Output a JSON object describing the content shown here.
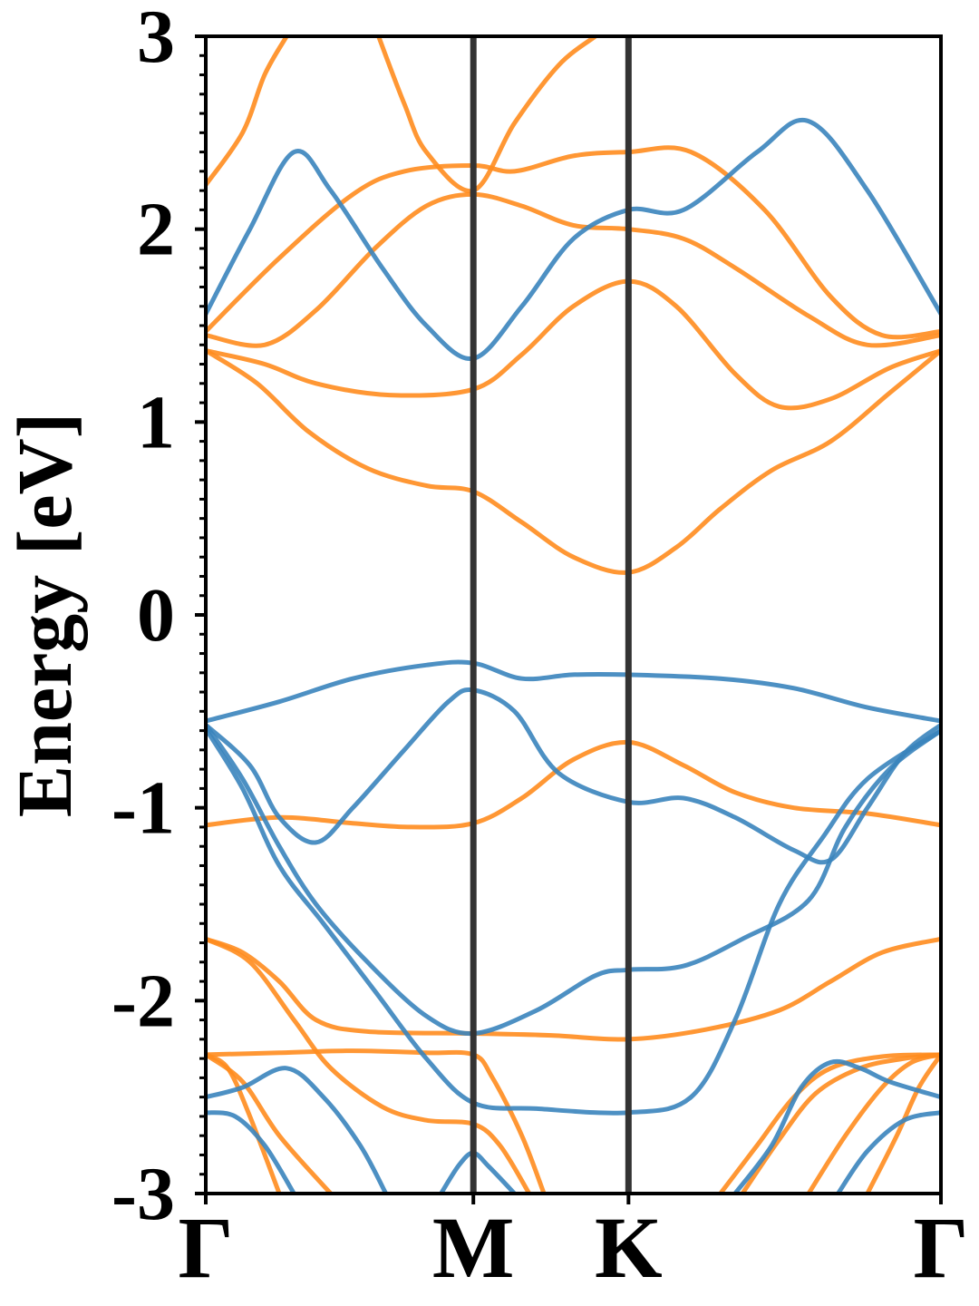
{
  "chart_data": {
    "type": "line",
    "title": "",
    "xlabel": "",
    "ylabel": "Energy [eV]",
    "ylim": [
      -3,
      3
    ],
    "xlim": [
      0,
      1
    ],
    "yticks": [
      -3,
      -2,
      -1,
      0,
      1,
      2,
      3
    ],
    "ytick_labels": [
      "-3",
      "-2",
      "-1",
      "0",
      "1",
      "2",
      "3"
    ],
    "kpoints": [
      {
        "label": "Γ",
        "x": 0.0
      },
      {
        "label": "M",
        "x": 0.364
      },
      {
        "label": "K",
        "x": 0.575
      },
      {
        "label": "Γ",
        "x": 1.0
      }
    ],
    "grid": false,
    "legend": "none",
    "colors": {
      "blue": "#3a84bd",
      "orange": "#ff8c1e",
      "symmetry_line": "#333333"
    },
    "series": [
      {
        "color": "blue",
        "points": [
          [
            0,
            1.56
          ],
          [
            0.06,
            2.0
          ],
          [
            0.12,
            2.4
          ],
          [
            0.17,
            2.2
          ],
          [
            0.24,
            1.8
          ],
          [
            0.3,
            1.5
          ],
          [
            0.364,
            1.33
          ],
          [
            0.43,
            1.6
          ],
          [
            0.5,
            1.95
          ],
          [
            0.575,
            2.1
          ],
          [
            0.65,
            2.1
          ],
          [
            0.75,
            2.4
          ],
          [
            0.82,
            2.56
          ],
          [
            0.9,
            2.2
          ],
          [
            1.0,
            1.56
          ]
        ]
      },
      {
        "color": "blue",
        "points": [
          [
            0,
            -0.55
          ],
          [
            0.1,
            -0.45
          ],
          [
            0.2,
            -0.33
          ],
          [
            0.3,
            -0.26
          ],
          [
            0.364,
            -0.25
          ],
          [
            0.43,
            -0.33
          ],
          [
            0.5,
            -0.31
          ],
          [
            0.575,
            -0.31
          ],
          [
            0.7,
            -0.33
          ],
          [
            0.8,
            -0.38
          ],
          [
            0.9,
            -0.48
          ],
          [
            1.0,
            -0.55
          ]
        ]
      },
      {
        "color": "blue",
        "points": [
          [
            0,
            -0.57
          ],
          [
            0.06,
            -0.78
          ],
          [
            0.1,
            -1.05
          ],
          [
            0.15,
            -1.18
          ],
          [
            0.2,
            -1.0
          ],
          [
            0.27,
            -0.7
          ],
          [
            0.33,
            -0.45
          ],
          [
            0.364,
            -0.39
          ],
          [
            0.42,
            -0.5
          ],
          [
            0.48,
            -0.82
          ],
          [
            0.575,
            -0.97
          ],
          [
            0.65,
            -0.95
          ],
          [
            0.72,
            -1.05
          ],
          [
            0.8,
            -1.22
          ],
          [
            0.85,
            -1.27
          ],
          [
            0.9,
            -1.0
          ],
          [
            0.95,
            -0.72
          ],
          [
            1.0,
            -0.57
          ]
        ]
      },
      {
        "color": "blue",
        "points": [
          [
            0,
            -0.57
          ],
          [
            0.05,
            -0.85
          ],
          [
            0.1,
            -1.2
          ],
          [
            0.15,
            -1.5
          ],
          [
            0.22,
            -1.8
          ],
          [
            0.3,
            -2.08
          ],
          [
            0.364,
            -2.17
          ],
          [
            0.45,
            -2.05
          ],
          [
            0.53,
            -1.87
          ],
          [
            0.575,
            -1.84
          ],
          [
            0.65,
            -1.82
          ],
          [
            0.73,
            -1.68
          ],
          [
            0.82,
            -1.48
          ],
          [
            0.87,
            -1.1
          ],
          [
            0.93,
            -0.8
          ],
          [
            1.0,
            -0.6
          ]
        ]
      },
      {
        "color": "blue",
        "points": [
          [
            0,
            -0.59
          ],
          [
            0.05,
            -0.9
          ],
          [
            0.1,
            -1.3
          ],
          [
            0.16,
            -1.6
          ],
          [
            0.23,
            -1.95
          ],
          [
            0.3,
            -2.3
          ],
          [
            0.364,
            -2.53
          ],
          [
            0.45,
            -2.56
          ],
          [
            0.575,
            -2.58
          ],
          [
            0.66,
            -2.5
          ],
          [
            0.72,
            -2.1
          ],
          [
            0.78,
            -1.5
          ],
          [
            0.84,
            -1.15
          ],
          [
            0.9,
            -0.85
          ],
          [
            1.0,
            -0.6
          ]
        ]
      },
      {
        "color": "blue",
        "points": [
          [
            0,
            -2.5
          ],
          [
            0.05,
            -2.45
          ],
          [
            0.11,
            -2.35
          ],
          [
            0.16,
            -2.5
          ],
          [
            0.21,
            -2.75
          ],
          [
            0.245,
            -3.0
          ]
        ]
      },
      {
        "color": "blue",
        "points": [
          [
            0,
            -2.58
          ],
          [
            0.04,
            -2.6
          ],
          [
            0.08,
            -2.75
          ],
          [
            0.12,
            -3.0
          ]
        ]
      },
      {
        "color": "blue",
        "points": [
          [
            0.32,
            -3.0
          ],
          [
            0.345,
            -2.85
          ],
          [
            0.364,
            -2.79
          ],
          [
            0.385,
            -2.86
          ],
          [
            0.42,
            -3.0
          ]
        ]
      },
      {
        "color": "blue",
        "points": [
          [
            0.72,
            -3.0
          ],
          [
            0.77,
            -2.75
          ],
          [
            0.81,
            -2.45
          ],
          [
            0.85,
            -2.32
          ],
          [
            0.89,
            -2.35
          ],
          [
            0.93,
            -2.42
          ],
          [
            1.0,
            -2.5
          ]
        ]
      },
      {
        "color": "blue",
        "points": [
          [
            0.86,
            -3.0
          ],
          [
            0.9,
            -2.78
          ],
          [
            0.95,
            -2.62
          ],
          [
            1.0,
            -2.58
          ]
        ]
      },
      {
        "color": "orange",
        "points": [
          [
            0,
            2.23
          ],
          [
            0.05,
            2.5
          ],
          [
            0.08,
            2.8
          ],
          [
            0.11,
            3.0
          ]
        ]
      },
      {
        "color": "orange",
        "points": [
          [
            0.235,
            3.0
          ],
          [
            0.27,
            2.65
          ],
          [
            0.3,
            2.4
          ],
          [
            0.364,
            2.2
          ],
          [
            0.42,
            2.55
          ],
          [
            0.48,
            2.85
          ],
          [
            0.53,
            3.0
          ]
        ]
      },
      {
        "color": "orange",
        "points": [
          [
            0,
            1.47
          ],
          [
            0.1,
            1.85
          ],
          [
            0.2,
            2.18
          ],
          [
            0.27,
            2.3
          ],
          [
            0.364,
            2.33
          ],
          [
            0.42,
            2.3
          ],
          [
            0.5,
            2.38
          ],
          [
            0.575,
            2.4
          ],
          [
            0.66,
            2.4
          ],
          [
            0.76,
            2.1
          ],
          [
            0.85,
            1.65
          ],
          [
            0.92,
            1.45
          ],
          [
            1.0,
            1.47
          ]
        ]
      },
      {
        "color": "orange",
        "points": [
          [
            0,
            1.45
          ],
          [
            0.08,
            1.4
          ],
          [
            0.15,
            1.58
          ],
          [
            0.23,
            1.9
          ],
          [
            0.3,
            2.12
          ],
          [
            0.364,
            2.18
          ],
          [
            0.43,
            2.12
          ],
          [
            0.5,
            2.02
          ],
          [
            0.575,
            2.0
          ],
          [
            0.65,
            1.95
          ],
          [
            0.72,
            1.8
          ],
          [
            0.82,
            1.55
          ],
          [
            0.9,
            1.4
          ],
          [
            1.0,
            1.45
          ]
        ]
      },
      {
        "color": "orange",
        "points": [
          [
            0,
            1.37
          ],
          [
            0.08,
            1.3
          ],
          [
            0.15,
            1.2
          ],
          [
            0.25,
            1.14
          ],
          [
            0.364,
            1.17
          ],
          [
            0.43,
            1.35
          ],
          [
            0.5,
            1.6
          ],
          [
            0.575,
            1.73
          ],
          [
            0.64,
            1.6
          ],
          [
            0.72,
            1.25
          ],
          [
            0.78,
            1.08
          ],
          [
            0.85,
            1.12
          ],
          [
            0.93,
            1.28
          ],
          [
            1.0,
            1.37
          ]
        ]
      },
      {
        "color": "orange",
        "points": [
          [
            0,
            1.37
          ],
          [
            0.07,
            1.2
          ],
          [
            0.14,
            0.95
          ],
          [
            0.22,
            0.76
          ],
          [
            0.3,
            0.67
          ],
          [
            0.364,
            0.64
          ],
          [
            0.43,
            0.48
          ],
          [
            0.5,
            0.3
          ],
          [
            0.575,
            0.22
          ],
          [
            0.64,
            0.35
          ],
          [
            0.7,
            0.55
          ],
          [
            0.77,
            0.75
          ],
          [
            0.85,
            0.9
          ],
          [
            0.93,
            1.15
          ],
          [
            1.0,
            1.37
          ]
        ]
      },
      {
        "color": "orange",
        "points": [
          [
            0,
            -1.09
          ],
          [
            0.1,
            -1.05
          ],
          [
            0.2,
            -1.08
          ],
          [
            0.28,
            -1.1
          ],
          [
            0.364,
            -1.08
          ],
          [
            0.43,
            -0.95
          ],
          [
            0.5,
            -0.75
          ],
          [
            0.575,
            -0.66
          ],
          [
            0.65,
            -0.78
          ],
          [
            0.72,
            -0.92
          ],
          [
            0.8,
            -1.0
          ],
          [
            0.9,
            -1.03
          ],
          [
            1.0,
            -1.09
          ]
        ]
      },
      {
        "color": "orange",
        "points": [
          [
            0,
            -1.68
          ],
          [
            0.05,
            -1.75
          ],
          [
            0.1,
            -1.9
          ],
          [
            0.15,
            -2.1
          ],
          [
            0.22,
            -2.16
          ],
          [
            0.364,
            -2.17
          ],
          [
            0.47,
            -2.18
          ],
          [
            0.575,
            -2.2
          ],
          [
            0.68,
            -2.15
          ],
          [
            0.78,
            -2.05
          ],
          [
            0.85,
            -1.9
          ],
          [
            0.92,
            -1.75
          ],
          [
            1.0,
            -1.68
          ]
        ]
      },
      {
        "color": "orange",
        "points": [
          [
            0,
            -1.68
          ],
          [
            0.06,
            -1.8
          ],
          [
            0.12,
            -2.1
          ],
          [
            0.17,
            -2.35
          ],
          [
            0.24,
            -2.55
          ],
          [
            0.3,
            -2.62
          ],
          [
            0.364,
            -2.64
          ],
          [
            0.4,
            -2.75
          ],
          [
            0.44,
            -3.0
          ]
        ]
      },
      {
        "color": "orange",
        "points": [
          [
            0,
            -2.28
          ],
          [
            0.1,
            -2.27
          ],
          [
            0.2,
            -2.26
          ],
          [
            0.3,
            -2.27
          ],
          [
            0.364,
            -2.28
          ],
          [
            0.39,
            -2.4
          ],
          [
            0.43,
            -2.7
          ],
          [
            0.46,
            -3.0
          ]
        ]
      },
      {
        "color": "orange",
        "points": [
          [
            0,
            -2.28
          ],
          [
            0.03,
            -2.35
          ],
          [
            0.06,
            -2.6
          ],
          [
            0.1,
            -3.0
          ]
        ]
      },
      {
        "color": "orange",
        "points": [
          [
            0,
            -2.28
          ],
          [
            0.05,
            -2.42
          ],
          [
            0.1,
            -2.7
          ],
          [
            0.17,
            -3.0
          ]
        ]
      },
      {
        "color": "orange",
        "points": [
          [
            0.7,
            -3.0
          ],
          [
            0.75,
            -2.75
          ],
          [
            0.8,
            -2.5
          ],
          [
            0.85,
            -2.35
          ],
          [
            0.92,
            -2.29
          ],
          [
            1.0,
            -2.28
          ]
        ]
      },
      {
        "color": "orange",
        "points": [
          [
            0.73,
            -3.0
          ],
          [
            0.78,
            -2.72
          ],
          [
            0.83,
            -2.48
          ],
          [
            0.89,
            -2.35
          ],
          [
            0.95,
            -2.3
          ],
          [
            1.0,
            -2.28
          ]
        ]
      },
      {
        "color": "orange",
        "points": [
          [
            0.82,
            -3.0
          ],
          [
            0.87,
            -2.7
          ],
          [
            0.92,
            -2.45
          ],
          [
            0.96,
            -2.32
          ],
          [
            1.0,
            -2.28
          ]
        ]
      },
      {
        "color": "orange",
        "points": [
          [
            0.9,
            -3.0
          ],
          [
            0.94,
            -2.7
          ],
          [
            0.97,
            -2.45
          ],
          [
            1.0,
            -2.28
          ]
        ]
      }
    ]
  }
}
